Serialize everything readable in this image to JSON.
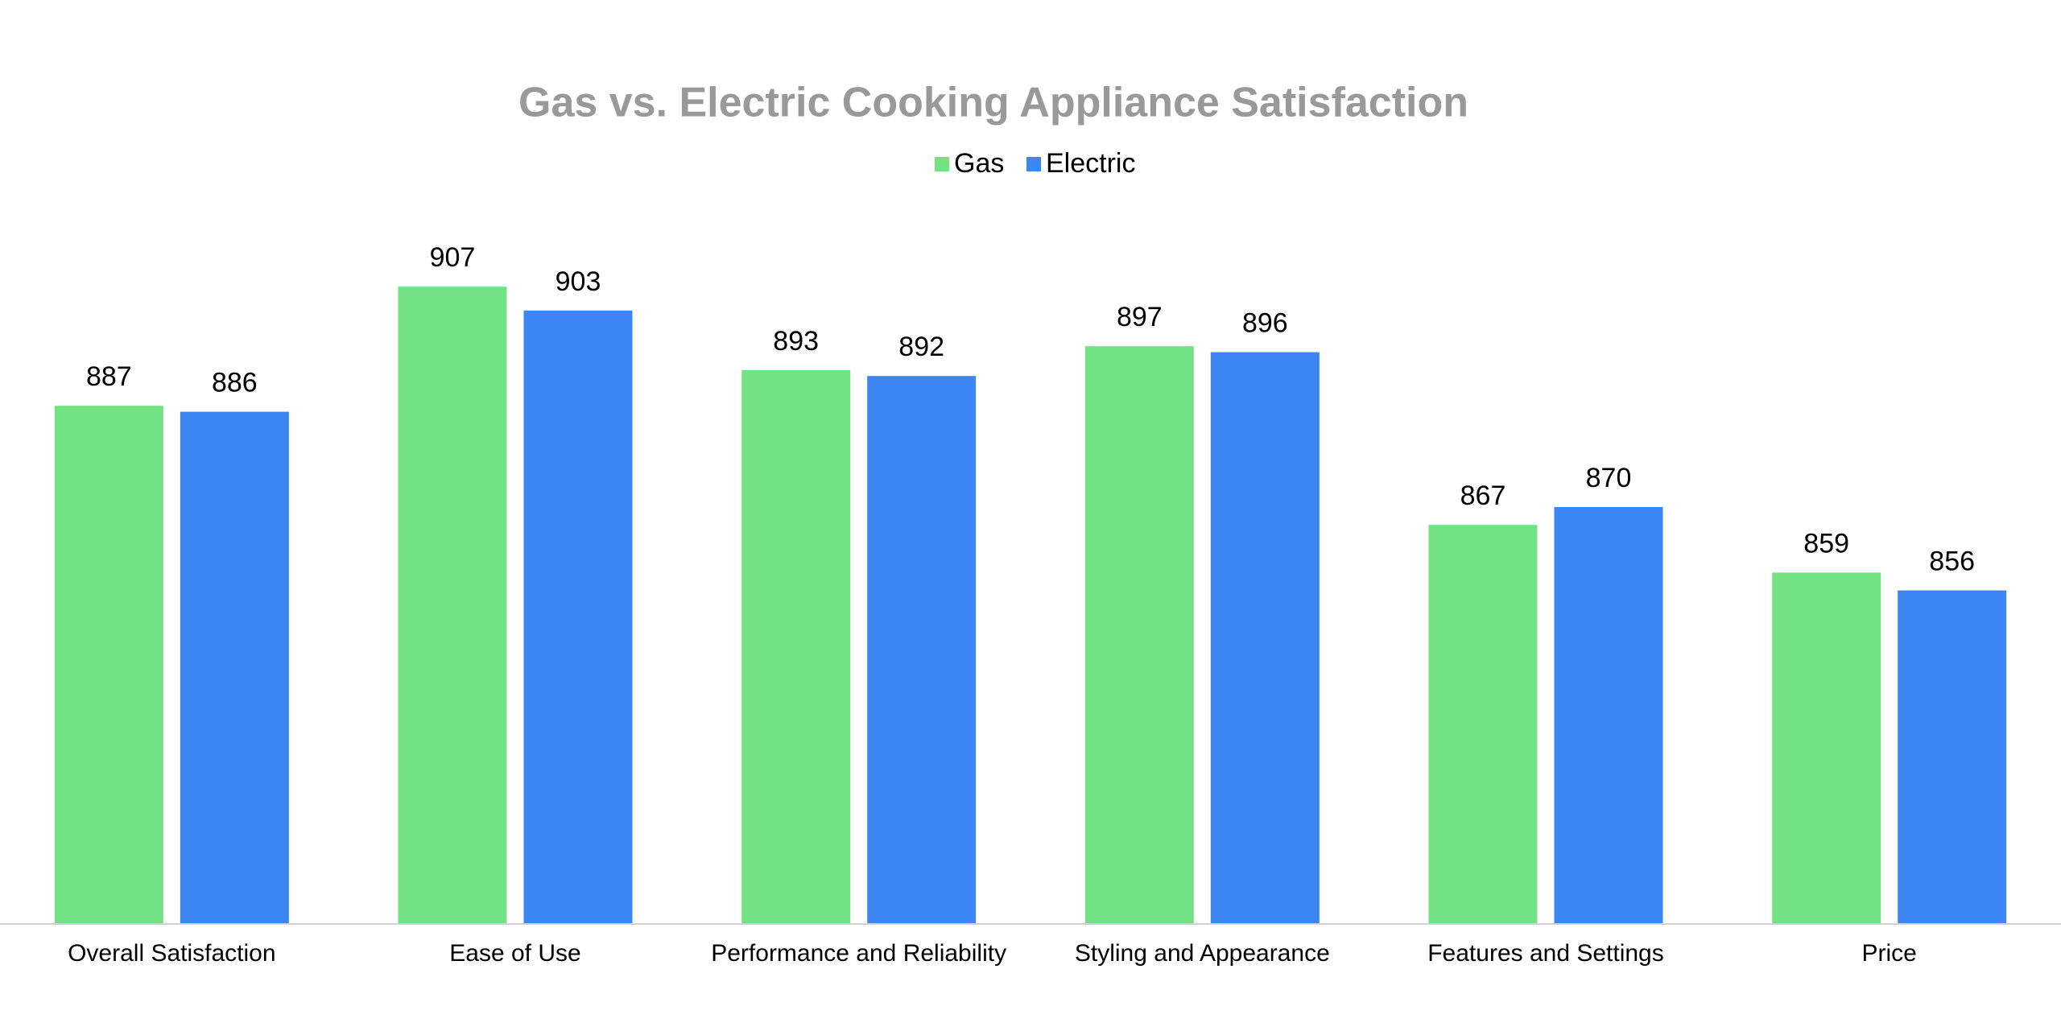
{
  "chart_data": {
    "type": "bar",
    "title": "Gas vs. Electric Cooking Appliance Satisfaction",
    "categories": [
      "Overall Satisfaction",
      "Ease of Use",
      "Performance and Reliability",
      "Styling and Appearance",
      "Features and Settings",
      "Price"
    ],
    "series": [
      {
        "name": "Gas",
        "color": "#73e283",
        "values": [
          887,
          907,
          893,
          897,
          867,
          859
        ]
      },
      {
        "name": "Electric",
        "color": "#3b86f3",
        "values": [
          886,
          903,
          892,
          896,
          870,
          856
        ]
      }
    ],
    "ylim": [
      800,
      920
    ],
    "legend": "top"
  }
}
